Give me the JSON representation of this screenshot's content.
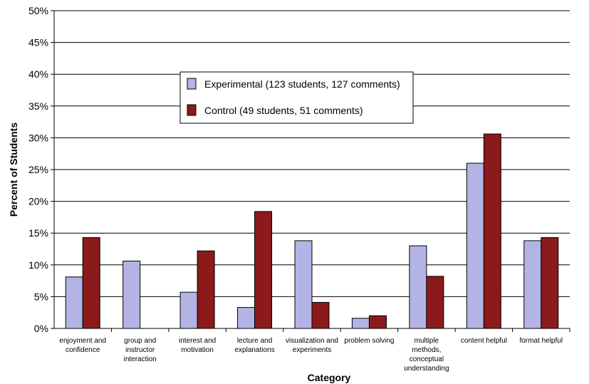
{
  "chart_data": {
    "type": "bar",
    "xlabel": "Category",
    "ylabel": "Percent of Students",
    "ylim": [
      0,
      50
    ],
    "ytick_labels": [
      "0%",
      "5%",
      "10%",
      "15%",
      "20%",
      "25%",
      "30%",
      "35%",
      "40%",
      "45%",
      "50%"
    ],
    "categories": [
      [
        "enjoyment and",
        "confidence"
      ],
      [
        "group and",
        "instructor",
        "interaction"
      ],
      [
        "interest and",
        "motivation"
      ],
      [
        "lecture and",
        "explanations"
      ],
      [
        "visualization and",
        "experiments"
      ],
      [
        "problem solving"
      ],
      [
        "multiple",
        "methods,",
        "conceptual",
        "understanding"
      ],
      [
        "content helpful"
      ],
      [
        "format helpful"
      ]
    ],
    "series": [
      {
        "name": "Experimental (123 students, 127 comments)",
        "color": "#b3b3e6",
        "values": [
          8.1,
          10.6,
          5.7,
          3.3,
          13.8,
          1.6,
          13.0,
          26.0,
          13.8
        ]
      },
      {
        "name": "Control (49 students, 51 comments)",
        "color": "#8b1a1a",
        "values": [
          14.3,
          0,
          12.2,
          18.4,
          4.1,
          2.0,
          8.2,
          30.6,
          14.3
        ]
      }
    ],
    "grid": true,
    "legend_position": "upper-center"
  }
}
